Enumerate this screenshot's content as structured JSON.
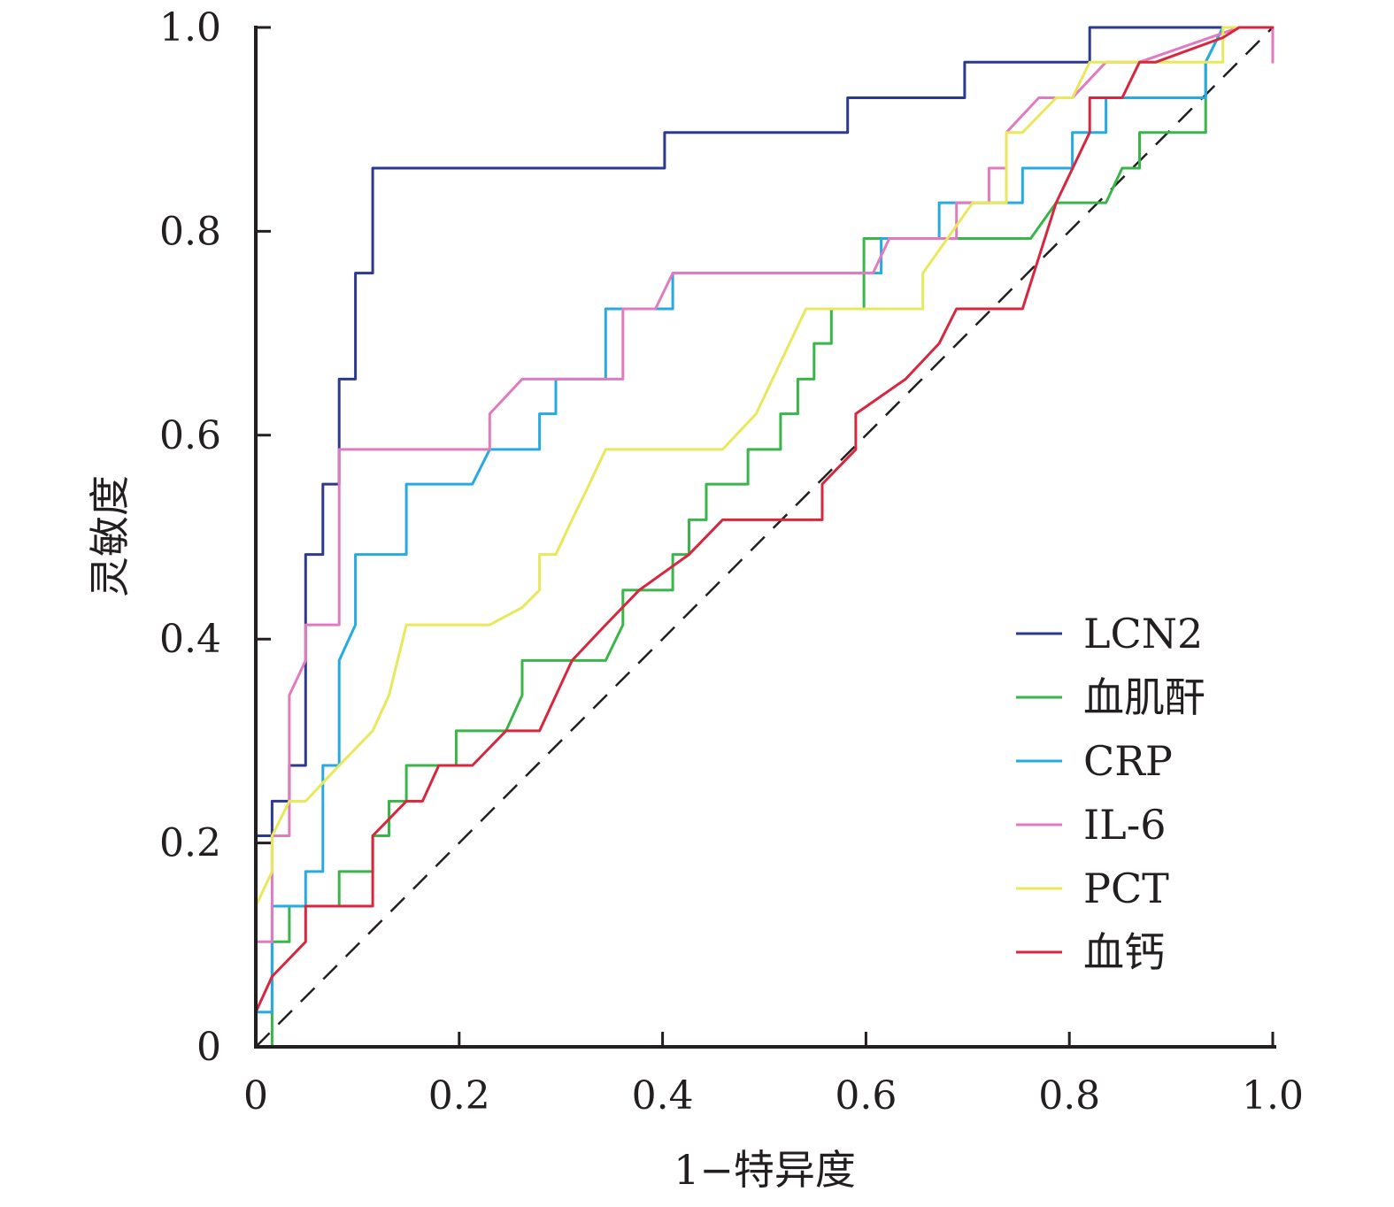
{
  "chart_data": {
    "type": "line",
    "title": "",
    "xlabel": "1−特异度",
    "ylabel": "灵敏度",
    "xlim": [
      0,
      1
    ],
    "ylim": [
      0,
      1
    ],
    "x_ticks": [
      "0",
      "0.2",
      "0.4",
      "0.6",
      "0.8",
      "1.0"
    ],
    "y_ticks": [
      "0",
      "0.2",
      "0.4",
      "0.6",
      "0.8",
      "1.0"
    ],
    "grid": false,
    "legend_position": "bottom-right",
    "reference_line": {
      "style": "dashed",
      "color": "#231f20",
      "x": [
        0,
        1
      ],
      "y": [
        0,
        1
      ]
    },
    "series": [
      {
        "name": "LCN2",
        "color": "#2b3990",
        "x": [
          0,
          0,
          0.016,
          0.016,
          0.033,
          0.033,
          0.049,
          0.049,
          0.066,
          0.066,
          0.082,
          0.082,
          0.098,
          0.098,
          0.115,
          0.115,
          0.402,
          0.402,
          0.582,
          0.582,
          0.697,
          0.697,
          0.82,
          0.82,
          1
        ],
        "y": [
          0,
          0.207,
          0.207,
          0.241,
          0.241,
          0.276,
          0.276,
          0.483,
          0.483,
          0.552,
          0.552,
          0.655,
          0.655,
          0.759,
          0.759,
          0.862,
          0.862,
          0.897,
          0.897,
          0.931,
          0.931,
          0.966,
          0.966,
          1,
          1
        ]
      },
      {
        "name": "血肌酐",
        "color": "#39b54a",
        "x": [
          0.016,
          0.016,
          0.033,
          0.033,
          0.082,
          0.082,
          0.115,
          0.115,
          0.131,
          0.131,
          0.148,
          0.148,
          0.197,
          0.197,
          0.246,
          0.262,
          0.262,
          0.344,
          0.361,
          0.361,
          0.41,
          0.41,
          0.426,
          0.426,
          0.443,
          0.443,
          0.484,
          0.484,
          0.516,
          0.516,
          0.533,
          0.533,
          0.549,
          0.549,
          0.566,
          0.566,
          0.598,
          0.598,
          0.762,
          0.787,
          0.836,
          0.852,
          0.852,
          0.869,
          0.869,
          0.934,
          0.934,
          0.951,
          1,
          1
        ],
        "y": [
          0,
          0.103,
          0.103,
          0.138,
          0.138,
          0.172,
          0.172,
          0.207,
          0.207,
          0.241,
          0.241,
          0.276,
          0.276,
          0.31,
          0.31,
          0.345,
          0.379,
          0.379,
          0.414,
          0.448,
          0.448,
          0.483,
          0.483,
          0.517,
          0.517,
          0.552,
          0.552,
          0.586,
          0.586,
          0.621,
          0.621,
          0.655,
          0.655,
          0.69,
          0.69,
          0.724,
          0.724,
          0.793,
          0.793,
          0.828,
          0.828,
          0.862,
          0.862,
          0.862,
          0.897,
          0.897,
          0.966,
          1,
          1,
          1
        ]
      },
      {
        "name": "CRP",
        "color": "#27aae1",
        "x": [
          0,
          0,
          0.016,
          0.016,
          0.049,
          0.049,
          0.066,
          0.066,
          0.082,
          0.082,
          0.098,
          0.098,
          0.148,
          0.148,
          0.213,
          0.23,
          0.23,
          0.279,
          0.279,
          0.295,
          0.295,
          0.344,
          0.344,
          0.41,
          0.41,
          0.59,
          0.59,
          0.615,
          0.615,
          0.672,
          0.672,
          0.754,
          0.754,
          0.787,
          0.787,
          0.803,
          0.803,
          0.836,
          0.836,
          0.934,
          0.934,
          0.951,
          1
        ],
        "y": [
          0,
          0.034,
          0.034,
          0.138,
          0.138,
          0.172,
          0.172,
          0.276,
          0.276,
          0.379,
          0.414,
          0.483,
          0.483,
          0.552,
          0.552,
          0.586,
          0.586,
          0.586,
          0.621,
          0.621,
          0.655,
          0.655,
          0.724,
          0.724,
          0.759,
          0.759,
          0.759,
          0.759,
          0.793,
          0.793,
          0.828,
          0.828,
          0.862,
          0.862,
          0.862,
          0.862,
          0.897,
          0.897,
          0.931,
          0.931,
          0.966,
          1,
          1
        ]
      },
      {
        "name": "IL-6",
        "color": "#e07bc0",
        "x": [
          0,
          0.016,
          0.016,
          0.033,
          0.033,
          0.049,
          0.049,
          0.082,
          0.082,
          0.23,
          0.23,
          0.262,
          0.262,
          0.361,
          0.361,
          0.377,
          0.377,
          0.393,
          0.41,
          0.41,
          0.607,
          0.623,
          0.623,
          0.689,
          0.689,
          0.721,
          0.721,
          0.738,
          0.738,
          0.77,
          0.77,
          0.803,
          0.836,
          0.852,
          0.869,
          0.967,
          0.983,
          1,
          1
        ],
        "y": [
          0.103,
          0.103,
          0.207,
          0.207,
          0.345,
          0.379,
          0.414,
          0.414,
          0.586,
          0.586,
          0.621,
          0.655,
          0.655,
          0.655,
          0.724,
          0.724,
          0.724,
          0.724,
          0.759,
          0.759,
          0.759,
          0.793,
          0.793,
          0.793,
          0.828,
          0.828,
          0.862,
          0.862,
          0.897,
          0.931,
          0.931,
          0.931,
          0.966,
          0.966,
          0.966,
          1,
          1,
          1,
          0.966
        ]
      },
      {
        "name": "PCT",
        "color": "#e8e85a",
        "x": [
          0,
          0.016,
          0.016,
          0.033,
          0.049,
          0.082,
          0.115,
          0.131,
          0.148,
          0.197,
          0.23,
          0.262,
          0.279,
          0.279,
          0.295,
          0.311,
          0.328,
          0.344,
          0.344,
          0.393,
          0.443,
          0.459,
          0.492,
          0.541,
          0.574,
          0.59,
          0.656,
          0.656,
          0.705,
          0.705,
          0.738,
          0.738,
          0.754,
          0.787,
          0.803,
          0.82,
          0.82,
          0.951,
          0.951,
          0.967,
          1
        ],
        "y": [
          0.138,
          0.172,
          0.207,
          0.241,
          0.241,
          0.276,
          0.31,
          0.345,
          0.414,
          0.414,
          0.414,
          0.431,
          0.448,
          0.483,
          0.483,
          0.517,
          0.552,
          0.586,
          0.586,
          0.586,
          0.586,
          0.586,
          0.621,
          0.724,
          0.724,
          0.724,
          0.724,
          0.759,
          0.828,
          0.828,
          0.828,
          0.897,
          0.897,
          0.931,
          0.931,
          0.966,
          0.966,
          0.966,
          1,
          1,
          1
        ]
      },
      {
        "name": "血钙",
        "color": "#d7263d",
        "x": [
          0,
          0.016,
          0.049,
          0.049,
          0.115,
          0.115,
          0.148,
          0.164,
          0.18,
          0.213,
          0.246,
          0.279,
          0.311,
          0.344,
          0.377,
          0.426,
          0.459,
          0.492,
          0.557,
          0.557,
          0.59,
          0.59,
          0.639,
          0.672,
          0.689,
          0.721,
          0.754,
          0.787,
          0.82,
          0.82,
          0.836,
          0.852,
          0.869,
          0.885,
          0.951,
          0.967,
          1
        ],
        "y": [
          0.034,
          0.069,
          0.103,
          0.138,
          0.138,
          0.207,
          0.241,
          0.241,
          0.276,
          0.276,
          0.31,
          0.31,
          0.379,
          0.414,
          0.448,
          0.483,
          0.517,
          0.517,
          0.517,
          0.552,
          0.586,
          0.621,
          0.655,
          0.69,
          0.724,
          0.724,
          0.724,
          0.828,
          0.897,
          0.931,
          0.931,
          0.931,
          0.966,
          0.966,
          0.99,
          1,
          1
        ]
      }
    ]
  }
}
